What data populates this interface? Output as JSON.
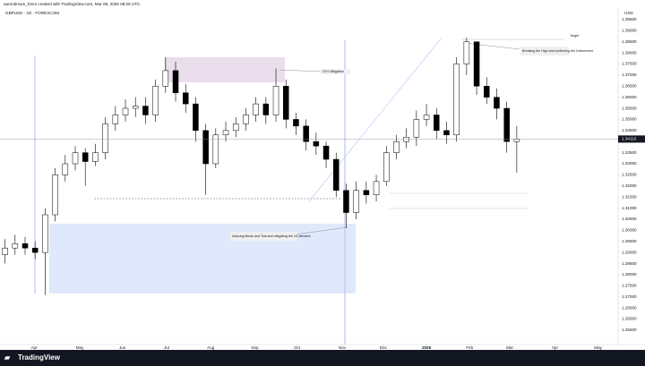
{
  "header": {
    "credit": "aaronbrown_forex created with TradingView.com, Mar 08, 2026 08:28 UTC",
    "symbol": "GBPUSD · 1D · FOREXCOM",
    "currency": "USD"
  },
  "annotations": [
    "Target",
    "Breaking the High and confirming the Deliverment",
    "DXY Mitigation",
    "Inducing Break and Test and mitigating the 1D demand"
  ],
  "footer": {
    "brand": "TradingView"
  },
  "chart_data": {
    "type": "candlestick",
    "open": [
      1.289,
      1.292,
      1.294,
      1.292,
      1.29,
      1.307,
      1.325,
      1.33,
      1.335,
      1.331,
      1.335,
      1.348,
      1.352,
      1.355,
      1.356,
      1.352,
      1.365,
      1.372,
      1.362,
      1.357,
      1.345,
      1.33,
      1.343,
      1.345,
      1.348,
      1.352,
      1.357,
      1.352,
      1.365,
      1.35,
      1.347,
      1.34,
      1.338,
      1.332,
      1.318,
      1.308,
      1.318,
      1.316,
      1.322,
      1.335,
      1.34,
      1.342,
      1.35,
      1.352,
      1.345,
      1.343,
      1.375,
      1.385,
      1.365,
      1.36,
      1.355,
      1.34
    ],
    "high": [
      1.296,
      1.298,
      1.297,
      1.295,
      1.31,
      1.328,
      1.334,
      1.338,
      1.337,
      1.339,
      1.351,
      1.356,
      1.359,
      1.36,
      1.36,
      1.368,
      1.378,
      1.376,
      1.366,
      1.36,
      1.348,
      1.346,
      1.349,
      1.351,
      1.355,
      1.36,
      1.36,
      1.373,
      1.368,
      1.353,
      1.35,
      1.344,
      1.34,
      1.335,
      1.321,
      1.322,
      1.322,
      1.325,
      1.338,
      1.343,
      1.346,
      1.354,
      1.357,
      1.355,
      1.349,
      1.378,
      1.3868,
      1.385,
      1.369,
      1.364,
      1.358,
      1.347
    ],
    "low": [
      1.285,
      1.289,
      1.289,
      1.287,
      1.2708,
      1.304,
      1.322,
      1.327,
      1.32,
      1.329,
      1.332,
      1.345,
      1.349,
      1.351,
      1.348,
      1.349,
      1.362,
      1.358,
      1.353,
      1.34,
      1.316,
      1.328,
      1.34,
      1.342,
      1.345,
      1.349,
      1.348,
      1.349,
      1.346,
      1.343,
      1.336,
      1.334,
      1.328,
      1.315,
      1.301,
      1.305,
      1.312,
      1.313,
      1.32,
      1.332,
      1.337,
      1.338,
      1.347,
      1.341,
      1.339,
      1.34,
      1.37,
      1.361,
      1.357,
      1.35,
      1.335,
      1.326
    ],
    "close": [
      1.292,
      1.294,
      1.292,
      1.29,
      1.307,
      1.325,
      1.33,
      1.335,
      1.331,
      1.335,
      1.348,
      1.352,
      1.355,
      1.356,
      1.352,
      1.365,
      1.372,
      1.362,
      1.357,
      1.345,
      1.33,
      1.343,
      1.345,
      1.348,
      1.352,
      1.357,
      1.352,
      1.365,
      1.35,
      1.347,
      1.34,
      1.338,
      1.332,
      1.318,
      1.308,
      1.318,
      1.316,
      1.322,
      1.335,
      1.34,
      1.342,
      1.35,
      1.352,
      1.345,
      1.343,
      1.375,
      1.385,
      1.365,
      1.36,
      1.355,
      1.34,
      1.34115
    ],
    "up_color": "#ffffff",
    "down_color": "#000000",
    "last_price": {
      "value": 1.34115,
      "label": "1.34115"
    },
    "xlim": [
      0,
      61.6
    ],
    "xticks": [
      {
        "value": 3.4,
        "label": "Apr"
      },
      {
        "value": 7.95,
        "label": "May"
      },
      {
        "value": 12.2,
        "label": "Jun"
      },
      {
        "value": 16.6,
        "label": "Jul"
      },
      {
        "value": 21,
        "label": "Aug"
      },
      {
        "value": 25.4,
        "label": "Sep"
      },
      {
        "value": 29.6,
        "label": "Oct"
      },
      {
        "value": 34.1,
        "label": "Nov"
      },
      {
        "value": 38.2,
        "label": "Dec"
      },
      {
        "value": 42.5,
        "label": "2026"
      },
      {
        "value": 46.8,
        "label": "Feb"
      },
      {
        "value": 50.8,
        "label": "Mar"
      },
      {
        "value": 55.3,
        "label": "Apr"
      },
      {
        "value": 59.6,
        "label": "May"
      }
    ],
    "ylim": [
      1.2485,
      1.3998
    ],
    "yticks": [
      {
        "value": 1.255,
        "label": "1.25500"
      },
      {
        "value": 1.26,
        "label": "1.26000"
      },
      {
        "value": 1.265,
        "label": "1.26500"
      },
      {
        "value": 1.27,
        "label": "1.27000"
      },
      {
        "value": 1.275,
        "label": "1.27500"
      },
      {
        "value": 1.28,
        "label": "1.28000"
      },
      {
        "value": 1.285,
        "label": "1.28500"
      },
      {
        "value": 1.29,
        "label": "1.29000"
      },
      {
        "value": 1.295,
        "label": "1.29500"
      },
      {
        "value": 1.3,
        "label": "1.30000"
      },
      {
        "value": 1.305,
        "label": "1.30500"
      },
      {
        "value": 1.31,
        "label": "1.31000"
      },
      {
        "value": 1.315,
        "label": "1.31500"
      },
      {
        "value": 1.32,
        "label": "1.32000"
      },
      {
        "value": 1.325,
        "label": "1.32500"
      },
      {
        "value": 1.33,
        "label": "1.33000"
      },
      {
        "value": 1.335,
        "label": "1.33500"
      },
      {
        "value": 1.34,
        "label": "1.34000"
      },
      {
        "value": 1.345,
        "label": "1.34500"
      },
      {
        "value": 1.35,
        "label": "1.35000"
      },
      {
        "value": 1.355,
        "label": "1.35500"
      },
      {
        "value": 1.36,
        "label": "1.36000"
      },
      {
        "value": 1.365,
        "label": "1.36500"
      },
      {
        "value": 1.37,
        "label": "1.37000"
      },
      {
        "value": 1.375,
        "label": "1.37500"
      },
      {
        "value": 1.38,
        "label": "1.38000"
      },
      {
        "value": 1.385,
        "label": "1.38500"
      },
      {
        "value": 1.39,
        "label": "1.39000"
      },
      {
        "value": 1.395,
        "label": "1.39500"
      }
    ]
  }
}
